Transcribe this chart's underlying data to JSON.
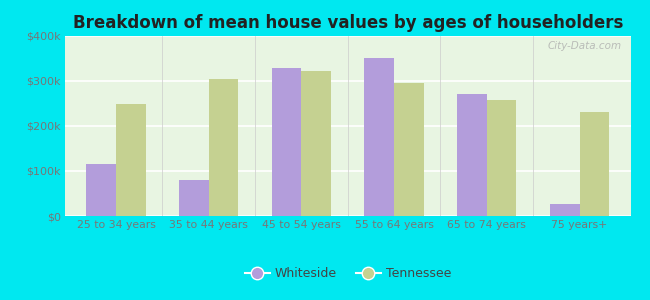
{
  "title": "Breakdown of mean house values by ages of householders",
  "categories": [
    "25 to 34 years",
    "35 to 44 years",
    "45 to 54 years",
    "55 to 64 years",
    "65 to 74 years",
    "75 years+"
  ],
  "whiteside_values": [
    115000,
    80000,
    330000,
    350000,
    272000,
    27000
  ],
  "tennessee_values": [
    248000,
    305000,
    322000,
    295000,
    258000,
    232000
  ],
  "whiteside_color": "#b39ddb",
  "tennessee_color": "#c5d191",
  "background_color": "#00e8f0",
  "plot_bg_color": "#e8f5e2",
  "ylim": [
    0,
    400000
  ],
  "yticks": [
    0,
    100000,
    200000,
    300000,
    400000
  ],
  "ytick_labels": [
    "$0",
    "$100k",
    "$200k",
    "$300k",
    "$400k"
  ],
  "title_fontsize": 12,
  "legend_labels": [
    "Whiteside",
    "Tennessee"
  ],
  "watermark": "City-Data.com",
  "tick_color": "#777777",
  "grid_color": "#ffffff"
}
